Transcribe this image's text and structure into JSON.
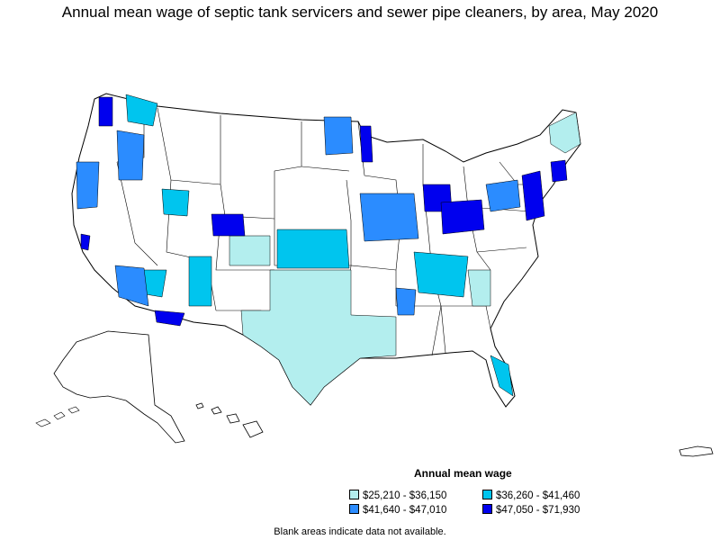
{
  "title": "Annual mean wage of septic tank servicers and sewer pipe cleaners, by area, May 2020",
  "legend": {
    "title": "Annual mean wage",
    "items": [
      {
        "label": "$25,210 - $36,150",
        "color": "#b3eeee"
      },
      {
        "label": "$36,260 - $41,460",
        "color": "#00c5ee"
      },
      {
        "label": "$41,640 - $47,010",
        "color": "#2b8cff"
      },
      {
        "label": "$47,050 - $71,930",
        "color": "#0000ee"
      }
    ]
  },
  "note": "Blank areas indicate data not available.",
  "colors": {
    "border": "#000000",
    "blank": "#ffffff"
  }
}
